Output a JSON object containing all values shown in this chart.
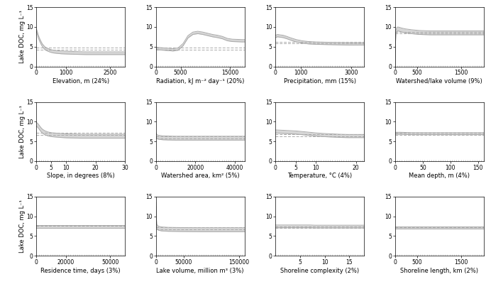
{
  "ylabel": "Lake DOC, mg L⁻¹",
  "ylim": [
    0,
    15
  ],
  "yticks": [
    0,
    5,
    10,
    15
  ],
  "subplots": [
    {
      "xlabel": "Elevation, m (24%)",
      "xlim": [
        0,
        3000
      ],
      "xticks": [
        0,
        1000,
        2500
      ],
      "x_curve": [
        0,
        30,
        60,
        100,
        150,
        200,
        280,
        370,
        470,
        580,
        700,
        830,
        970,
        1150,
        1380,
        1650,
        2000,
        2500,
        3000
      ],
      "y_upper": [
        9.5,
        8.8,
        8.0,
        7.2,
        6.4,
        5.7,
        5.0,
        4.6,
        4.3,
        4.1,
        4.0,
        3.9,
        3.85,
        3.8,
        3.75,
        3.7,
        3.7,
        3.7,
        3.7
      ],
      "y_lower": [
        8.8,
        8.1,
        7.3,
        6.5,
        5.7,
        5.0,
        4.3,
        3.9,
        3.6,
        3.4,
        3.3,
        3.2,
        3.15,
        3.1,
        3.05,
        3.0,
        3.0,
        3.0,
        3.0
      ],
      "y_dashed_upper": [
        4.7,
        4.7,
        4.7,
        4.7,
        4.7,
        4.7,
        4.7,
        4.7,
        4.7,
        4.7,
        4.7,
        4.7,
        4.7,
        4.7,
        4.7,
        4.7,
        4.7,
        4.7,
        4.7
      ],
      "y_dashed_lower": [
        4.2,
        4.2,
        4.2,
        4.2,
        4.2,
        4.2,
        4.2,
        4.2,
        4.2,
        4.2,
        4.2,
        4.2,
        4.2,
        4.2,
        4.2,
        4.2,
        4.2,
        4.2,
        4.2
      ]
    },
    {
      "xlabel": "Radiation, kJ m⁻² day⁻¹ (20%)",
      "xlim": [
        0,
        18000
      ],
      "xticks": [
        0,
        5000,
        15000
      ],
      "x_curve": [
        0,
        500,
        1500,
        2500,
        3500,
        4500,
        5500,
        6500,
        7500,
        8500,
        9500,
        10500,
        11500,
        12500,
        13500,
        14500,
        15500,
        16500,
        17500,
        18000
      ],
      "y_upper": [
        4.9,
        4.8,
        4.7,
        4.6,
        4.5,
        4.7,
        5.8,
        7.8,
        8.7,
        8.9,
        8.7,
        8.4,
        8.1,
        7.9,
        7.6,
        7.1,
        6.9,
        6.85,
        6.8,
        6.8
      ],
      "y_lower": [
        4.3,
        4.2,
        4.1,
        4.0,
        3.9,
        4.1,
        5.2,
        7.2,
        8.1,
        8.3,
        8.1,
        7.8,
        7.5,
        7.3,
        7.0,
        6.5,
        6.3,
        6.25,
        6.2,
        6.2
      ],
      "y_dashed_upper": [
        4.7,
        4.7,
        4.7,
        4.7,
        4.7,
        4.7,
        4.7,
        4.7,
        4.7,
        4.7,
        4.7,
        4.7,
        4.7,
        4.7,
        4.7,
        4.7,
        4.7,
        4.7,
        4.7,
        4.7
      ],
      "y_dashed_lower": [
        4.2,
        4.2,
        4.2,
        4.2,
        4.2,
        4.2,
        4.2,
        4.2,
        4.2,
        4.2,
        4.2,
        4.2,
        4.2,
        4.2,
        4.2,
        4.2,
        4.2,
        4.2,
        4.2,
        4.2
      ]
    },
    {
      "xlabel": "Precipitation, mm (15%)",
      "xlim": [
        0,
        3500
      ],
      "xticks": [
        0,
        1000,
        3000
      ],
      "x_curve": [
        0,
        80,
        180,
        300,
        450,
        620,
        820,
        1050,
        1300,
        1580,
        1880,
        2200,
        2550,
        2900,
        3200,
        3500
      ],
      "y_upper": [
        7.9,
        8.1,
        8.0,
        7.9,
        7.6,
        7.2,
        6.8,
        6.5,
        6.3,
        6.2,
        6.15,
        6.1,
        6.05,
        6.0,
        6.0,
        6.0
      ],
      "y_lower": [
        7.3,
        7.5,
        7.4,
        7.3,
        7.0,
        6.6,
        6.2,
        5.9,
        5.7,
        5.6,
        5.55,
        5.5,
        5.45,
        5.4,
        5.4,
        5.4
      ],
      "y_dashed_upper": [
        6.3,
        6.3,
        6.3,
        6.3,
        6.3,
        6.3,
        6.3,
        6.3,
        6.3,
        6.3,
        6.3,
        6.3,
        6.3,
        6.3,
        6.3,
        6.3
      ],
      "y_dashed_lower": [
        5.8,
        5.8,
        5.8,
        5.8,
        5.8,
        5.8,
        5.8,
        5.8,
        5.8,
        5.8,
        5.8,
        5.8,
        5.8,
        5.8,
        5.8,
        5.8
      ]
    },
    {
      "xlabel": "Watershed/lake volume (9%)",
      "xlim": [
        0,
        2000
      ],
      "xticks": [
        0,
        500,
        1500
      ],
      "x_curve": [
        0,
        5,
        12,
        22,
        38,
        62,
        98,
        155,
        240,
        370,
        550,
        800,
        1100,
        1450,
        1800,
        2000
      ],
      "y_upper": [
        0.3,
        4.0,
        7.5,
        9.2,
        9.8,
        10.0,
        9.9,
        9.7,
        9.5,
        9.3,
        9.1,
        9.0,
        9.0,
        9.0,
        9.0,
        9.0
      ],
      "y_lower": [
        0.1,
        3.0,
        6.5,
        8.2,
        8.8,
        9.0,
        8.9,
        8.7,
        8.5,
        8.3,
        8.1,
        8.0,
        8.0,
        8.0,
        8.0,
        8.0
      ],
      "y_dashed_upper": [
        8.8,
        8.8,
        8.8,
        8.8,
        8.8,
        8.8,
        8.8,
        8.8,
        8.8,
        8.8,
        8.8,
        8.8,
        8.8,
        8.8,
        8.8,
        8.8
      ],
      "y_dashed_lower": [
        8.3,
        8.3,
        8.3,
        8.3,
        8.3,
        8.3,
        8.3,
        8.3,
        8.3,
        8.3,
        8.3,
        8.3,
        8.3,
        8.3,
        8.3,
        8.3
      ]
    },
    {
      "xlabel": "Slope, in degrees (8%)",
      "xlim": [
        0,
        30
      ],
      "xticks": [
        0,
        5,
        10,
        20,
        30
      ],
      "x_curve": [
        0,
        0.5,
        1,
        1.5,
        2,
        2.8,
        3.8,
        5,
        6.5,
        8,
        10,
        12.5,
        15,
        18,
        22,
        26,
        30
      ],
      "y_upper": [
        9.8,
        9.5,
        9.0,
        8.5,
        8.1,
        7.7,
        7.4,
        7.2,
        7.1,
        7.0,
        6.9,
        6.85,
        6.8,
        6.8,
        6.8,
        6.8,
        6.8
      ],
      "y_lower": [
        8.8,
        8.5,
        8.0,
        7.5,
        7.1,
        6.7,
        6.4,
        6.2,
        6.1,
        6.0,
        5.9,
        5.85,
        5.8,
        5.8,
        5.8,
        5.8,
        5.8
      ],
      "y_dashed_upper": [
        7.2,
        7.2,
        7.2,
        7.2,
        7.2,
        7.2,
        7.2,
        7.2,
        7.2,
        7.2,
        7.2,
        7.2,
        7.2,
        7.2,
        7.2,
        7.2,
        7.2
      ],
      "y_dashed_lower": [
        6.7,
        6.7,
        6.7,
        6.7,
        6.7,
        6.7,
        6.7,
        6.7,
        6.7,
        6.7,
        6.7,
        6.7,
        6.7,
        6.7,
        6.7,
        6.7,
        6.7
      ]
    },
    {
      "xlabel": "Watershed area, km² (5%)",
      "xlim": [
        0,
        45000
      ],
      "xticks": [
        0,
        20000,
        40000
      ],
      "x_curve": [
        0,
        300,
        800,
        1800,
        3500,
        6000,
        10000,
        16000,
        24000,
        34000,
        45000
      ],
      "y_upper": [
        7.2,
        6.8,
        6.6,
        6.5,
        6.4,
        6.35,
        6.3,
        6.3,
        6.3,
        6.3,
        6.3
      ],
      "y_lower": [
        6.2,
        5.8,
        5.6,
        5.5,
        5.4,
        5.35,
        5.3,
        5.3,
        5.3,
        5.3,
        5.3
      ],
      "y_dashed_upper": [
        6.3,
        6.3,
        6.3,
        6.3,
        6.3,
        6.3,
        6.3,
        6.3,
        6.3,
        6.3,
        6.3
      ],
      "y_dashed_lower": [
        5.8,
        5.8,
        5.8,
        5.8,
        5.8,
        5.8,
        5.8,
        5.8,
        5.8,
        5.8,
        5.8
      ]
    },
    {
      "xlabel": "Temperature, °C (4%)",
      "xlim": [
        0,
        22
      ],
      "xticks": [
        0,
        5,
        10,
        20
      ],
      "x_curve": [
        0,
        1,
        2,
        3,
        4,
        5,
        6,
        7,
        8,
        9,
        10,
        12,
        14,
        16,
        18,
        20,
        22
      ],
      "y_upper": [
        7.9,
        7.85,
        7.8,
        7.75,
        7.7,
        7.65,
        7.55,
        7.45,
        7.35,
        7.25,
        7.15,
        7.0,
        6.9,
        6.8,
        6.75,
        6.75,
        6.75
      ],
      "y_lower": [
        7.1,
        7.05,
        7.0,
        6.95,
        6.9,
        6.85,
        6.75,
        6.65,
        6.55,
        6.45,
        6.35,
        6.2,
        6.1,
        6.0,
        5.95,
        5.95,
        5.95
      ],
      "y_dashed_upper": [
        6.8,
        6.8,
        6.8,
        6.8,
        6.8,
        6.8,
        6.8,
        6.8,
        6.8,
        6.8,
        6.8,
        6.8,
        6.8,
        6.8,
        6.8,
        6.8,
        6.8
      ],
      "y_dashed_lower": [
        6.3,
        6.3,
        6.3,
        6.3,
        6.3,
        6.3,
        6.3,
        6.3,
        6.3,
        6.3,
        6.3,
        6.3,
        6.3,
        6.3,
        6.3,
        6.3,
        6.3
      ]
    },
    {
      "xlabel": "Mean depth, m (4%)",
      "xlim": [
        0,
        160
      ],
      "xticks": [
        0,
        50,
        100,
        150
      ],
      "x_curve": [
        0,
        5,
        10,
        20,
        30,
        50,
        70,
        100,
        130,
        160
      ],
      "y_upper": [
        7.3,
        7.3,
        7.3,
        7.25,
        7.2,
        7.2,
        7.2,
        7.2,
        7.2,
        7.2
      ],
      "y_lower": [
        6.8,
        6.8,
        6.8,
        6.75,
        6.7,
        6.7,
        6.7,
        6.7,
        6.7,
        6.7
      ],
      "y_dashed_upper": [
        7.1,
        7.1,
        7.1,
        7.1,
        7.1,
        7.1,
        7.1,
        7.1,
        7.1,
        7.1
      ],
      "y_dashed_lower": [
        6.6,
        6.6,
        6.6,
        6.6,
        6.6,
        6.6,
        6.6,
        6.6,
        6.6,
        6.6
      ]
    },
    {
      "xlabel": "Residence time, days (3%)",
      "xlim": [
        0,
        60000
      ],
      "xticks": [
        0,
        20000,
        50000
      ],
      "x_curve": [
        0,
        1000,
        3000,
        7000,
        15000,
        30000,
        50000,
        60000
      ],
      "y_upper": [
        7.8,
        7.8,
        7.8,
        7.8,
        7.8,
        7.8,
        7.8,
        7.8
      ],
      "y_lower": [
        7.1,
        7.1,
        7.1,
        7.1,
        7.1,
        7.1,
        7.1,
        7.1
      ],
      "y_dashed_upper": [
        7.6,
        7.6,
        7.6,
        7.6,
        7.6,
        7.6,
        7.6,
        7.6
      ],
      "y_dashed_lower": [
        7.1,
        7.1,
        7.1,
        7.1,
        7.1,
        7.1,
        7.1,
        7.1
      ]
    },
    {
      "xlabel": "Lake volume, million m³ (3%)",
      "xlim": [
        0,
        160000
      ],
      "xticks": [
        0,
        50000,
        150000
      ],
      "x_curve": [
        0,
        500,
        1500,
        4000,
        10000,
        22000,
        45000,
        80000,
        120000,
        160000
      ],
      "y_upper": [
        13.5,
        10.0,
        8.0,
        7.5,
        7.3,
        7.2,
        7.15,
        7.1,
        7.1,
        7.1
      ],
      "y_lower": [
        12.5,
        9.0,
        7.0,
        6.5,
        6.3,
        6.2,
        6.15,
        6.1,
        6.1,
        6.1
      ],
      "y_dashed_upper": [
        7.2,
        7.2,
        7.2,
        7.2,
        7.2,
        7.2,
        7.2,
        7.2,
        7.2,
        7.2
      ],
      "y_dashed_lower": [
        6.7,
        6.7,
        6.7,
        6.7,
        6.7,
        6.7,
        6.7,
        6.7,
        6.7,
        6.7
      ]
    },
    {
      "xlabel": "Shoreline complexity (2%)",
      "xlim": [
        0,
        18
      ],
      "xticks": [
        5,
        10,
        15
      ],
      "x_curve": [
        0,
        1,
        2,
        3,
        4,
        5,
        6,
        7,
        8,
        10,
        12,
        14,
        16,
        18
      ],
      "y_upper": [
        7.8,
        7.8,
        7.8,
        7.8,
        7.8,
        7.8,
        7.8,
        7.8,
        7.75,
        7.75,
        7.75,
        7.75,
        7.75,
        7.75
      ],
      "y_lower": [
        7.1,
        7.1,
        7.1,
        7.1,
        7.1,
        7.1,
        7.1,
        7.1,
        7.05,
        7.05,
        7.05,
        7.05,
        7.05,
        7.05
      ],
      "y_dashed_upper": [
        7.5,
        7.5,
        7.5,
        7.5,
        7.5,
        7.5,
        7.5,
        7.5,
        7.5,
        7.5,
        7.5,
        7.5,
        7.5,
        7.5
      ],
      "y_dashed_lower": [
        7.0,
        7.0,
        7.0,
        7.0,
        7.0,
        7.0,
        7.0,
        7.0,
        7.0,
        7.0,
        7.0,
        7.0,
        7.0,
        7.0
      ]
    },
    {
      "xlabel": "Shoreline length, km (2%)",
      "xlim": [
        0,
        2000
      ],
      "xticks": [
        0,
        500,
        1500
      ],
      "x_curve": [
        0,
        50,
        150,
        350,
        650,
        1100,
        1600,
        2000
      ],
      "y_upper": [
        7.5,
        7.5,
        7.5,
        7.5,
        7.5,
        7.5,
        7.5,
        7.5
      ],
      "y_lower": [
        6.9,
        6.9,
        6.9,
        6.9,
        6.9,
        6.9,
        6.9,
        6.9
      ],
      "y_dashed_upper": [
        7.3,
        7.3,
        7.3,
        7.3,
        7.3,
        7.3,
        7.3,
        7.3
      ],
      "y_dashed_lower": [
        6.8,
        6.8,
        6.8,
        6.8,
        6.8,
        6.8,
        6.8,
        6.8
      ]
    }
  ]
}
